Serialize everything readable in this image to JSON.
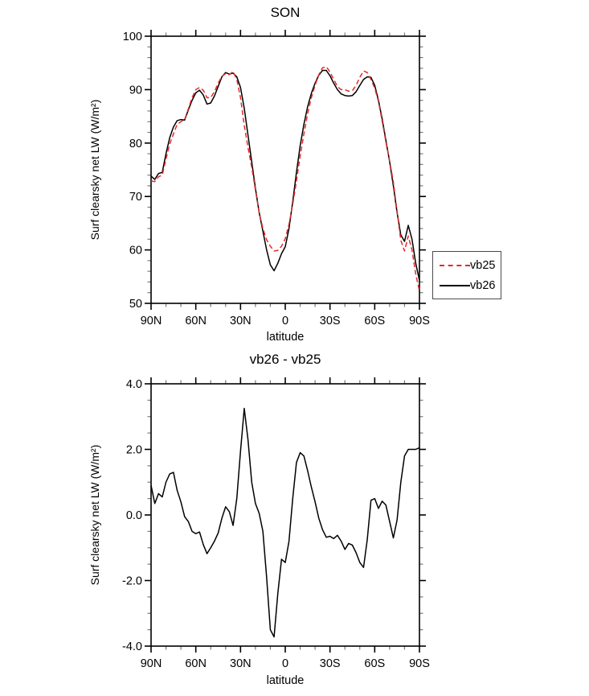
{
  "chart_data": [
    {
      "type": "line",
      "title": "SON",
      "xlabel": "latitude",
      "ylabel": "Surf clearsky net LW (W/m²)",
      "grid": false,
      "legend_position": "right-outside",
      "xlim": [
        90,
        -90
      ],
      "ylim": [
        50,
        100
      ],
      "x_tick_values": [
        90,
        60,
        30,
        0,
        -30,
        -60,
        -90
      ],
      "x_tick_labels": [
        "90N",
        "60N",
        "30N",
        "0",
        "30S",
        "60S",
        "90S"
      ],
      "x_minor_step": 10,
      "y_tick_values": [
        50,
        60,
        70,
        80,
        90,
        100
      ],
      "y_tick_labels": [
        "50",
        "60",
        "70",
        "80",
        "90",
        "100"
      ],
      "y_minor_step": 2,
      "x": [
        90,
        87.5,
        85,
        82.5,
        80,
        77.5,
        75,
        72.5,
        70,
        67.5,
        65,
        62.5,
        60,
        57.5,
        55,
        52.5,
        50,
        47.5,
        45,
        42.5,
        40,
        37.5,
        35,
        32.5,
        30,
        27.5,
        25,
        22.5,
        20,
        17.5,
        15,
        12.5,
        10,
        7.5,
        5,
        2.5,
        0,
        -2.5,
        -5,
        -7.5,
        -10,
        -12.5,
        -15,
        -17.5,
        -20,
        -22.5,
        -25,
        -27.5,
        -30,
        -32.5,
        -35,
        -37.5,
        -40,
        -42.5,
        -45,
        -47.5,
        -50,
        -52.5,
        -55,
        -57.5,
        -60,
        -62.5,
        -65,
        -67.5,
        -70,
        -72.5,
        -75,
        -77.5,
        -80,
        -82.5,
        -85,
        -87.5,
        -90
      ],
      "series": [
        {
          "name": "vb25",
          "color": "#e62828",
          "style": "dashed",
          "values": [
            72.9,
            72.8,
            73.7,
            74.0,
            77.0,
            79.8,
            81.7,
            83.5,
            84.0,
            84.4,
            86.4,
            88.5,
            90.0,
            90.4,
            89.9,
            88.5,
            88.5,
            89.6,
            91.2,
            92.5,
            93.0,
            92.8,
            93.4,
            91.9,
            88.5,
            83.3,
            79.2,
            75.5,
            71.2,
            67.0,
            64.0,
            61.9,
            60.7,
            59.8,
            59.9,
            60.7,
            62.1,
            64.8,
            68.5,
            72.9,
            77.6,
            81.7,
            85.5,
            88.5,
            90.8,
            92.8,
            94.1,
            94.3,
            93.3,
            91.9,
            90.6,
            90.0,
            90.0,
            89.7,
            89.8,
            90.8,
            92.3,
            93.5,
            93.2,
            91.9,
            90.3,
            87.8,
            84.1,
            80.2,
            76.7,
            72.7,
            67.2,
            61.8,
            59.8,
            62.6,
            60.0,
            55.5,
            52.3
          ]
        },
        {
          "name": "vb26",
          "color": "#000000",
          "style": "solid",
          "values": [
            73.8,
            73.2,
            74.3,
            74.5,
            78.0,
            81.0,
            83.0,
            84.2,
            84.4,
            84.3,
            86.2,
            88.0,
            89.4,
            89.9,
            89.0,
            87.3,
            87.5,
            88.8,
            90.6,
            92.4,
            93.2,
            92.9,
            93.1,
            92.4,
            90.4,
            86.5,
            81.5,
            76.5,
            71.5,
            67.0,
            63.5,
            60.0,
            57.2,
            56.1,
            57.5,
            59.3,
            60.6,
            64.0,
            69.0,
            74.5,
            79.5,
            83.5,
            86.8,
            89.3,
            91.2,
            92.7,
            93.6,
            93.6,
            92.6,
            91.2,
            90.0,
            89.2,
            88.9,
            88.8,
            88.9,
            89.6,
            90.8,
            91.9,
            92.4,
            92.3,
            90.8,
            88.0,
            84.5,
            80.5,
            76.5,
            72.0,
            67.0,
            62.8,
            61.6,
            64.6,
            62.0,
            57.5,
            54.3
          ]
        }
      ]
    },
    {
      "type": "line",
      "title": "vb26 - vb25",
      "xlabel": "latitude",
      "ylabel": "Surf clearsky net LW (W/m²)",
      "grid": false,
      "legend_position": "none",
      "xlim": [
        90,
        -90
      ],
      "ylim": [
        -4,
        4
      ],
      "x_tick_values": [
        90,
        60,
        30,
        0,
        -30,
        -60,
        -90
      ],
      "x_tick_labels": [
        "90N",
        "60N",
        "30N",
        "0",
        "30S",
        "60S",
        "90S"
      ],
      "x_minor_step": 10,
      "y_tick_values": [
        -4,
        -2,
        0,
        2,
        4
      ],
      "y_tick_labels": [
        "-4.0",
        "-2.0",
        "0.0",
        "2.0",
        "4.0"
      ],
      "y_minor_step": 0.5,
      "x": [
        90,
        87.5,
        85,
        82.5,
        80,
        77.5,
        75,
        72.5,
        70,
        67.5,
        65,
        62.5,
        60,
        57.5,
        55,
        52.5,
        50,
        47.5,
        45,
        42.5,
        40,
        37.5,
        35,
        32.5,
        30,
        27.5,
        25,
        22.5,
        20,
        17.5,
        15,
        12.5,
        10,
        7.5,
        5,
        2.5,
        0,
        -2.5,
        -5,
        -7.5,
        -10,
        -12.5,
        -15,
        -17.5,
        -20,
        -22.5,
        -25,
        -27.5,
        -30,
        -32.5,
        -35,
        -37.5,
        -40,
        -42.5,
        -45,
        -47.5,
        -50,
        -52.5,
        -55,
        -57.5,
        -60,
        -62.5,
        -65,
        -67.5,
        -70,
        -72.5,
        -75,
        -77.5,
        -80,
        -82.5,
        -85,
        -87.5,
        -90
      ],
      "series": [
        {
          "name": "vb26 - vb25",
          "color": "#000000",
          "style": "solid",
          "values": [
            0.9,
            0.35,
            0.65,
            0.55,
            1.0,
            1.25,
            1.3,
            0.75,
            0.4,
            -0.05,
            -0.2,
            -0.5,
            -0.57,
            -0.52,
            -0.9,
            -1.18,
            -1.0,
            -0.8,
            -0.55,
            -0.1,
            0.25,
            0.1,
            -0.32,
            0.5,
            1.95,
            3.25,
            2.3,
            1.0,
            0.35,
            0.05,
            -0.5,
            -1.9,
            -3.5,
            -3.72,
            -2.4,
            -1.35,
            -1.45,
            -0.8,
            0.5,
            1.6,
            1.9,
            1.8,
            1.35,
            0.85,
            0.4,
            -0.1,
            -0.45,
            -0.68,
            -0.65,
            -0.72,
            -0.62,
            -0.8,
            -1.05,
            -0.87,
            -0.92,
            -1.15,
            -1.45,
            -1.6,
            -0.75,
            0.45,
            0.5,
            0.2,
            0.42,
            0.3,
            -0.2,
            -0.7,
            -0.15,
            1.0,
            1.8,
            2.0,
            2.0,
            2.0,
            2.05
          ]
        }
      ]
    }
  ],
  "legend": {
    "entries": [
      {
        "label": "vb25",
        "color": "#e62828",
        "style": "dashed"
      },
      {
        "label": "vb26",
        "color": "#000000",
        "style": "solid"
      }
    ]
  },
  "colors": {
    "axis": "#000000",
    "minor_tick": "#7a7a7a",
    "background": "#ffffff"
  }
}
